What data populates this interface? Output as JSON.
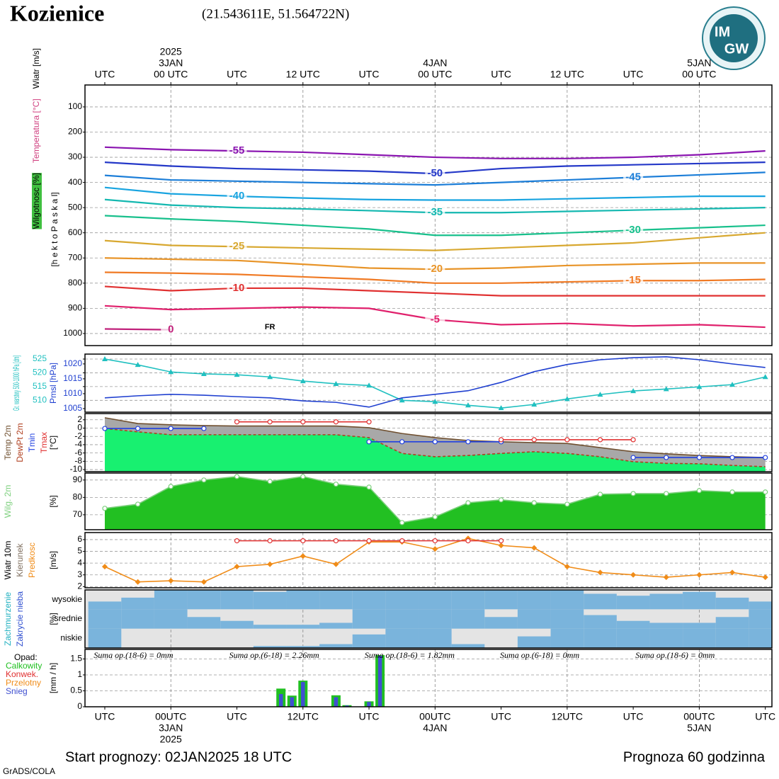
{
  "header": {
    "title": "Kozienice",
    "coords": "(21.543611E, 51.564722N)"
  },
  "logo": [
    "IM",
    "GW"
  ],
  "footer": {
    "start": "Start prognozy: 02JAN2025 18 UTC",
    "length": "Prognoza 60 godzinna",
    "credit": "GrADS/COLA"
  },
  "chart_data": [
    {
      "type": "contour",
      "xlim": [
        -1.8,
        60.6
      ],
      "ylim": [
        1048,
        13
      ],
      "yticks": [
        100,
        200,
        300,
        400,
        500,
        600,
        700,
        800,
        900,
        1000
      ],
      "grid": true,
      "xaxis": "top",
      "xticks": [
        {
          "value": 0,
          "label": "UTC"
        },
        {
          "value": 6,
          "label": "00 UTC"
        },
        {
          "value": 12,
          "label": "UTC"
        },
        {
          "value": 18,
          "label": "12 UTC"
        },
        {
          "value": 24,
          "label": "UTC"
        },
        {
          "value": 30,
          "label": "00 UTC"
        },
        {
          "value": 36,
          "label": "UTC"
        },
        {
          "value": 42,
          "label": "12 UTC"
        },
        {
          "value": 48,
          "label": "UTC"
        },
        {
          "value": 54,
          "label": "00 UTC"
        }
      ],
      "xdates": [
        {
          "value": 6,
          "label": "3JAN"
        },
        {
          "value": 30,
          "label": "4JAN"
        },
        {
          "value": 54,
          "label": "5JAN"
        }
      ],
      "year": {
        "value": 6,
        "label": "2025"
      },
      "side_labels": [
        {
          "text": "Wiatr [m/s]",
          "color": "#000000"
        },
        {
          "text": "Temperatura [°C]",
          "color": "#d04080"
        },
        {
          "text": "Wilgotnosc [%]",
          "color": "#000000",
          "background": "#40c040"
        }
      ],
      "ylabel": "[h e k t o P a s k a l]",
      "annotations": [
        "FR"
      ],
      "x": [
        0,
        6,
        12,
        18,
        24,
        30,
        36,
        42,
        48,
        54,
        60
      ],
      "series": [
        {
          "name": "-55",
          "color": "#8a14b0",
          "values": [
            260,
            270,
            275,
            280,
            290,
            300,
            305,
            305,
            300,
            290,
            275
          ]
        },
        {
          "name": "-50",
          "color": "#2438c8",
          "values": [
            320,
            335,
            345,
            350,
            355,
            365,
            345,
            335,
            330,
            325,
            320
          ]
        },
        {
          "name": "-45",
          "color": "#1c7ed8",
          "values": [
            372,
            390,
            395,
            400,
            405,
            410,
            400,
            390,
            380,
            370,
            360
          ]
        },
        {
          "name": "-40",
          "color": "#18a4e0",
          "values": [
            420,
            445,
            455,
            462,
            468,
            470,
            470,
            465,
            460,
            455,
            455
          ]
        },
        {
          "name": "-35",
          "color": "#14b8b0",
          "values": [
            468,
            490,
            500,
            505,
            512,
            520,
            520,
            515,
            510,
            505,
            500
          ]
        },
        {
          "name": "-30",
          "color": "#18c08c",
          "values": [
            532,
            545,
            555,
            570,
            585,
            610,
            610,
            600,
            590,
            580,
            570
          ]
        },
        {
          "name": "-25",
          "color": "#d8a830",
          "values": [
            631,
            650,
            655,
            660,
            665,
            670,
            660,
            650,
            640,
            620,
            600
          ]
        },
        {
          "name": "-20",
          "color": "#e89428",
          "values": [
            700,
            705,
            710,
            725,
            740,
            745,
            740,
            730,
            725,
            720,
            720
          ]
        },
        {
          "name": "-15",
          "color": "#f07a24",
          "values": [
            757,
            760,
            765,
            775,
            785,
            800,
            800,
            795,
            790,
            790,
            785
          ]
        },
        {
          "name": "-10",
          "color": "#e03030",
          "values": [
            813,
            830,
            820,
            820,
            830,
            840,
            850,
            850,
            850,
            850,
            850
          ]
        },
        {
          "name": "-5",
          "color": "#e0206c",
          "values": [
            890,
            905,
            900,
            895,
            900,
            945,
            965,
            960,
            970,
            965,
            975
          ]
        },
        {
          "name": "0",
          "color": "#c0207a",
          "values": [
            982,
            985,
            null,
            null,
            null,
            null,
            null,
            null,
            null,
            null,
            null
          ]
        }
      ]
    },
    {
      "type": "line",
      "xlim": [
        -1.8,
        60.6
      ],
      "ylim": [
        505.7,
        526.8
      ],
      "yticks": [
        510,
        515,
        520,
        525
      ],
      "y2lim": [
        1003.8,
        1023.3
      ],
      "y2ticks": [
        1005,
        1010,
        1015,
        1020
      ],
      "grid": true,
      "x": [
        0,
        3,
        6,
        9,
        12,
        15,
        18,
        21,
        24,
        27,
        30,
        33,
        36,
        39,
        42,
        45,
        48,
        51,
        54,
        57,
        60
      ],
      "series": [
        {
          "name": "Gr. warstwy 500-1000 hPa [dm]",
          "color": "#20c0c0",
          "marker": "triangle",
          "values": [
            525,
            522.9,
            520.3,
            519.6,
            519.3,
            518.5,
            517,
            516,
            515.4,
            510,
            509.5,
            508.2,
            507.2,
            508.5,
            510.5,
            512.1,
            513.4,
            514.1,
            514.9,
            515.7,
            518.5
          ]
        },
        {
          "name": "Pmsl [hPa]",
          "color": "#2040d0",
          "axis": "y2",
          "values": [
            1008.6,
            1009.3,
            1009.8,
            1009.5,
            1009,
            1008.6,
            1007.6,
            1007.1,
            1005.5,
            1008.6,
            1009.8,
            1011,
            1013.8,
            1017.4,
            1019.8,
            1021.4,
            1022.1,
            1022.4,
            1021.4,
            1020,
            1018.8
          ]
        }
      ]
    },
    {
      "type": "line",
      "xlim": [
        -1.8,
        60.6
      ],
      "ylim": [
        -10.5,
        3.5
      ],
      "yticks": [
        2,
        0,
        -2,
        -4,
        -6,
        -8,
        -10
      ],
      "grid": true,
      "ylabel": "[°C]",
      "x": [
        0,
        3,
        6,
        9,
        12,
        15,
        18,
        21,
        24,
        27,
        30,
        33,
        36,
        39,
        42,
        45,
        48,
        51,
        54,
        57,
        60
      ],
      "series": [
        {
          "name": "Temp 2m",
          "color": "#705030",
          "fill": "#a8a8a8",
          "values": [
            2.5,
            1.1,
            0.8,
            0.6,
            0.5,
            0.5,
            0.5,
            0.5,
            0.1,
            -1.3,
            -2.3,
            -3,
            -3.3,
            -3.5,
            -3.7,
            -4.7,
            -5.7,
            -6.2,
            -6.6,
            -6.9,
            -7.1
          ]
        },
        {
          "name": "DewPt 2m",
          "color": "#b04020",
          "fill": "#18f070",
          "dash": true,
          "values": [
            -0.1,
            -0.9,
            -1.6,
            -1.6,
            -1.6,
            -1.6,
            -1.6,
            -1.6,
            -2.3,
            -6.1,
            -6.9,
            -6.6,
            -6.1,
            -5.7,
            -6.1,
            -6.9,
            -8.1,
            -8.5,
            -8.6,
            -9,
            -9.3
          ]
        },
        {
          "name": "Tmin",
          "color": "#2040e0",
          "marker": "circle",
          "values": [
            -0.1,
            -0.1,
            -0.1,
            -0.1,
            null,
            null,
            null,
            null,
            -3.3,
            -3.3,
            -3.3,
            -3.3,
            -3.3,
            null,
            null,
            null,
            -7.1,
            -7.1,
            -7.1,
            -7.1,
            -7.1
          ]
        },
        {
          "name": "Tmax",
          "color": "#e03030",
          "marker": "circle",
          "values": [
            null,
            null,
            null,
            null,
            1.5,
            1.5,
            1.5,
            1.5,
            1.5,
            null,
            null,
            null,
            -2.8,
            -2.8,
            -2.8,
            -2.8,
            -2.8,
            null,
            null,
            null,
            null
          ]
        }
      ]
    },
    {
      "type": "line",
      "xlim": [
        -1.8,
        60.6
      ],
      "ylim": [
        61.4,
        94
      ],
      "yticks": [
        70,
        80,
        90
      ],
      "grid": true,
      "ylabel": "[%]",
      "x": [
        0,
        3,
        6,
        9,
        12,
        15,
        18,
        21,
        24,
        27,
        30,
        33,
        36,
        39,
        42,
        45,
        48,
        51,
        54,
        57,
        60
      ],
      "series": [
        {
          "name": "Wilg. 2m",
          "color": "#7ccf7c",
          "fill": "#22c022",
          "marker": "circle",
          "values": [
            73.7,
            76.1,
            86.3,
            90,
            92,
            89.2,
            92,
            87.6,
            85.9,
            65.5,
            68.8,
            76.9,
            78.6,
            76.9,
            76.1,
            81.8,
            82.2,
            82.2,
            83.9,
            83.1,
            83.1
          ]
        }
      ]
    },
    {
      "type": "line",
      "xlim": [
        -1.8,
        60.6
      ],
      "ylim": [
        1.9,
        6.6
      ],
      "yticks": [
        2,
        3,
        4,
        5,
        6
      ],
      "grid": true,
      "ylabel": "[m/s]",
      "side_labels": [
        {
          "text": "Wiatr 10m",
          "color": "#000000"
        },
        {
          "text": "Kierunek",
          "color": "#807060"
        }
      ],
      "x": [
        0,
        3,
        6,
        9,
        12,
        15,
        18,
        21,
        24,
        27,
        30,
        33,
        36,
        39,
        42,
        45,
        48,
        51,
        54,
        57,
        60
      ],
      "series": [
        {
          "name": "Predkosc",
          "color": "#f08c18",
          "marker": "diamond",
          "values": [
            3.7,
            2.4,
            2.5,
            2.4,
            3.7,
            3.9,
            4.6,
            3.9,
            5.8,
            5.8,
            5.2,
            6.1,
            5.5,
            5.3,
            3.7,
            3.2,
            3,
            2.8,
            3,
            3.2,
            2.8
          ]
        },
        {
          "color": "#e03030",
          "marker": "circle",
          "values": [
            null,
            null,
            null,
            null,
            5.9,
            5.9,
            5.9,
            5.9,
            5.9,
            5.9,
            5.9,
            5.9,
            5.9,
            null,
            null,
            null,
            null,
            null,
            null,
            null,
            null
          ]
        }
      ]
    },
    {
      "type": "cloud",
      "xlim": [
        -1.8,
        60.6
      ],
      "ylabel": "[%]",
      "color": "#7ab4dc",
      "background": "#e4e4e4",
      "side_labels": [
        {
          "text": "Zachmurzenie",
          "color": "#20b0c0"
        },
        {
          "text": "Zakrycie nieba",
          "color": "#3050d0"
        }
      ],
      "categories": [
        "wysokie",
        "srednie",
        "niskie"
      ],
      "x": [
        0,
        3,
        6,
        9,
        12,
        15,
        18,
        21,
        24,
        27,
        30,
        33,
        36,
        39,
        42,
        45,
        48,
        51,
        54,
        57,
        60
      ],
      "series": [
        {
          "values": [
            40,
            60,
            100,
            100,
            100,
            90,
            100,
            100,
            100,
            100,
            100,
            100,
            100,
            100,
            100,
            80,
            70,
            80,
            90,
            60,
            40
          ]
        },
        {
          "values": [
            100,
            100,
            100,
            60,
            40,
            20,
            20,
            30,
            100,
            100,
            100,
            100,
            60,
            100,
            100,
            70,
            40,
            30,
            30,
            60,
            100
          ]
        },
        {
          "values": [
            100,
            0,
            0,
            0,
            0,
            10,
            10,
            20,
            70,
            100,
            100,
            20,
            0,
            60,
            100,
            100,
            100,
            100,
            100,
            100,
            100
          ]
        }
      ]
    },
    {
      "type": "bar",
      "xlim": [
        -1.8,
        60.6
      ],
      "ylim": [
        0,
        1.8
      ],
      "yticks": [
        0,
        0.5,
        1,
        1.5
      ],
      "grid": true,
      "ylabel": "[mm / h]",
      "side_labels": [
        {
          "text": "Opad:",
          "color": "#000000"
        }
      ],
      "annotations": [
        "Suma op.(18-6) = 0mm",
        "Suma op.(6-18) = 2.26mm",
        "Suma op.(18-6) = 1.82mm",
        "Suma op.(6-18) = 0mm",
        "Suma op.(18-6) = 0mm"
      ],
      "xaxis": "bottom",
      "xticks": [
        {
          "value": 0,
          "label": "UTC"
        },
        {
          "value": 6,
          "label": "00UTC"
        },
        {
          "value": 12,
          "label": "UTC"
        },
        {
          "value": 18,
          "label": "12UTC"
        },
        {
          "value": 24,
          "label": "UTC"
        },
        {
          "value": 30,
          "label": "00UTC"
        },
        {
          "value": 36,
          "label": "UTC"
        },
        {
          "value": 42,
          "label": "12UTC"
        },
        {
          "value": 48,
          "label": "UTC"
        },
        {
          "value": 54,
          "label": "00UTC"
        },
        {
          "value": 60,
          "label": "UTC"
        }
      ],
      "xdates": [
        {
          "value": 6,
          "label": "3JAN"
        },
        {
          "value": 30,
          "label": "4JAN"
        },
        {
          "value": 54,
          "label": "5JAN"
        }
      ],
      "year": {
        "value": 6,
        "label": "2025"
      },
      "x": [
        12,
        16,
        17,
        18,
        21,
        22,
        24,
        25
      ],
      "series": [
        {
          "name": "Calkowity",
          "color": "#20c020",
          "values": [
            0.01,
            0.57,
            0.35,
            0.82,
            0.36,
            0.05,
            0.17,
            1.62
          ]
        },
        {
          "name": "Konwek.",
          "color": "#e03030",
          "values": [
            0,
            0,
            0,
            0,
            0,
            0,
            0,
            0
          ]
        },
        {
          "name": "Przelotny",
          "color": "#f08c18",
          "values": [
            0,
            0,
            0,
            0,
            0,
            0,
            0,
            0
          ]
        },
        {
          "name": "Snieg",
          "color": "#4050d0",
          "values": [
            0.01,
            0.4,
            0.3,
            0.78,
            0.3,
            0.04,
            0.15,
            1.6
          ]
        }
      ]
    }
  ]
}
